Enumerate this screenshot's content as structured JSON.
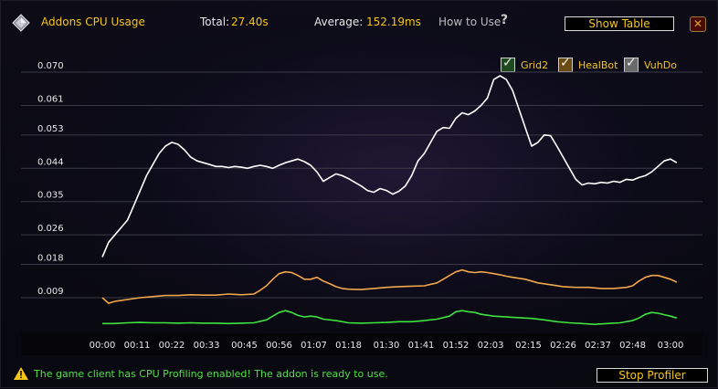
{
  "header": {
    "title": "Addons CPU Usage",
    "total_label": "Total:",
    "total_value": "27.40s",
    "average_label": "Average:",
    "average_value": "152.19ms",
    "how_to_use": "How to Use",
    "show_table": "Show Table",
    "close_glyph": "✕",
    "icon": "gem-icon",
    "help_icon": "question-icon"
  },
  "legend": [
    {
      "name": "Grid2",
      "color": "#3fe33f",
      "checked": true
    },
    {
      "name": "HealBot",
      "color": "#f3a64b",
      "checked": true
    },
    {
      "name": "VuhDo",
      "color": "#ffffff",
      "checked": true
    }
  ],
  "colors": {
    "accent": "#f5c518",
    "status_green": "#54e04a",
    "grid": "#3a3a48"
  },
  "chart_data": {
    "type": "line",
    "ylim": [
      0,
      0.073
    ],
    "y_ticks": [
      "0.009",
      "0.018",
      "0.026",
      "0.035",
      "0.044",
      "0.053",
      "0.061",
      "0.070"
    ],
    "y_tick_values": [
      0.009,
      0.018,
      0.026,
      0.035,
      0.044,
      0.053,
      0.061,
      0.07
    ],
    "x_ticks": [
      "00:00",
      "00:11",
      "00:22",
      "00:33",
      "00:45",
      "00:56",
      "01:07",
      "01:18",
      "01:30",
      "01:41",
      "01:52",
      "02:03",
      "02:15",
      "02:26",
      "02:37",
      "02:48",
      "03:00"
    ],
    "x_tick_seconds": [
      0,
      11,
      22,
      33,
      45,
      56,
      67,
      78,
      90,
      101,
      112,
      123,
      135,
      146,
      157,
      168,
      180
    ],
    "xlim_seconds": [
      0,
      180
    ],
    "series": [
      {
        "name": "VuhDo",
        "color": "#ffffff",
        "x": [
          0,
          2,
          4,
          6,
          8,
          10,
          12,
          14,
          16,
          18,
          20,
          22,
          24,
          26,
          28,
          30,
          32,
          34,
          36,
          38,
          40,
          42,
          44,
          46,
          48,
          50,
          52,
          54,
          56,
          58,
          60,
          62,
          64,
          66,
          68,
          70,
          72,
          74,
          76,
          78,
          80,
          82,
          84,
          86,
          88,
          90,
          92,
          94,
          96,
          98,
          100,
          102,
          104,
          106,
          108,
          110,
          112,
          114,
          116,
          118,
          120,
          122,
          124,
          126,
          128,
          130,
          132,
          134,
          136,
          138,
          140,
          142,
          144,
          146,
          148,
          150,
          152,
          154,
          156,
          158,
          160,
          162,
          164,
          166,
          168,
          170,
          172,
          174,
          176,
          178,
          180,
          182
        ],
        "values": [
          0.02,
          0.024,
          0.026,
          0.028,
          0.03,
          0.034,
          0.038,
          0.042,
          0.045,
          0.048,
          0.05,
          0.051,
          0.0505,
          0.049,
          0.047,
          0.046,
          0.0455,
          0.045,
          0.0445,
          0.0445,
          0.0442,
          0.0445,
          0.0443,
          0.044,
          0.0445,
          0.0448,
          0.0445,
          0.044,
          0.0448,
          0.0455,
          0.046,
          0.0465,
          0.0458,
          0.0448,
          0.043,
          0.0405,
          0.0415,
          0.0425,
          0.042,
          0.0412,
          0.0402,
          0.0392,
          0.038,
          0.0375,
          0.0385,
          0.038,
          0.037,
          0.0378,
          0.0392,
          0.042,
          0.046,
          0.048,
          0.051,
          0.054,
          0.055,
          0.0548,
          0.0575,
          0.059,
          0.0585,
          0.0595,
          0.061,
          0.063,
          0.068,
          0.069,
          0.068,
          0.065,
          0.06,
          0.055,
          0.05,
          0.051,
          0.053,
          0.0528,
          0.05,
          0.047,
          0.044,
          0.041,
          0.0395,
          0.04,
          0.0398,
          0.0402,
          0.04,
          0.0405,
          0.0402,
          0.041,
          0.0408,
          0.0415,
          0.042,
          0.043,
          0.0445,
          0.046,
          0.0465,
          0.0455
        ]
      },
      {
        "name": "HealBot",
        "color": "#f3a64b",
        "x": [
          0,
          2,
          4,
          8,
          12,
          16,
          20,
          24,
          28,
          32,
          36,
          40,
          44,
          48,
          50,
          52,
          54,
          56,
          58,
          60,
          62,
          64,
          66,
          68,
          70,
          72,
          74,
          76,
          78,
          82,
          86,
          90,
          94,
          98,
          102,
          106,
          108,
          110,
          112,
          114,
          116,
          118,
          120,
          122,
          124,
          126,
          128,
          130,
          134,
          138,
          142,
          146,
          150,
          154,
          158,
          162,
          166,
          168,
          170,
          172,
          174,
          176,
          178,
          180,
          182
        ],
        "values": [
          0.009,
          0.0075,
          0.008,
          0.0085,
          0.009,
          0.0093,
          0.0096,
          0.0096,
          0.0098,
          0.0097,
          0.0097,
          0.01,
          0.0098,
          0.01,
          0.011,
          0.0122,
          0.014,
          0.0155,
          0.016,
          0.0158,
          0.015,
          0.014,
          0.014,
          0.0145,
          0.0135,
          0.0128,
          0.012,
          0.0115,
          0.0113,
          0.0112,
          0.0115,
          0.0118,
          0.012,
          0.0121,
          0.0122,
          0.013,
          0.014,
          0.015,
          0.016,
          0.0165,
          0.016,
          0.0158,
          0.016,
          0.0158,
          0.0155,
          0.0152,
          0.0148,
          0.0145,
          0.014,
          0.013,
          0.0125,
          0.012,
          0.0118,
          0.0118,
          0.0115,
          0.0115,
          0.0118,
          0.0122,
          0.0135,
          0.0145,
          0.015,
          0.015,
          0.0145,
          0.014,
          0.0132
        ]
      },
      {
        "name": "Grid2",
        "color": "#3fe33f",
        "x": [
          0,
          4,
          8,
          12,
          16,
          20,
          24,
          28,
          32,
          36,
          40,
          44,
          48,
          52,
          54,
          56,
          58,
          60,
          62,
          64,
          66,
          68,
          70,
          74,
          78,
          82,
          86,
          90,
          94,
          98,
          102,
          106,
          110,
          112,
          114,
          116,
          118,
          120,
          124,
          128,
          132,
          136,
          140,
          144,
          148,
          152,
          156,
          160,
          164,
          168,
          170,
          172,
          174,
          176,
          178,
          180,
          182
        ],
        "values": [
          0.002,
          0.002,
          0.0022,
          0.0023,
          0.0022,
          0.0022,
          0.0021,
          0.0022,
          0.0021,
          0.0021,
          0.002,
          0.0021,
          0.0022,
          0.003,
          0.004,
          0.005,
          0.0055,
          0.005,
          0.0042,
          0.0038,
          0.004,
          0.0038,
          0.0032,
          0.0028,
          0.0022,
          0.0021,
          0.0022,
          0.0023,
          0.0025,
          0.0025,
          0.0028,
          0.0032,
          0.004,
          0.0052,
          0.0055,
          0.0052,
          0.005,
          0.0045,
          0.004,
          0.0038,
          0.0036,
          0.0034,
          0.003,
          0.0025,
          0.0022,
          0.002,
          0.0018,
          0.002,
          0.0022,
          0.0028,
          0.0035,
          0.0045,
          0.005,
          0.0048,
          0.0044,
          0.004,
          0.0035
        ]
      }
    ]
  },
  "footer": {
    "status_text": "The game client has CPU Profiling enabled! The addon is ready to use.",
    "stop_profiler": "Stop Profiler",
    "warning_icon": "warning-icon"
  }
}
